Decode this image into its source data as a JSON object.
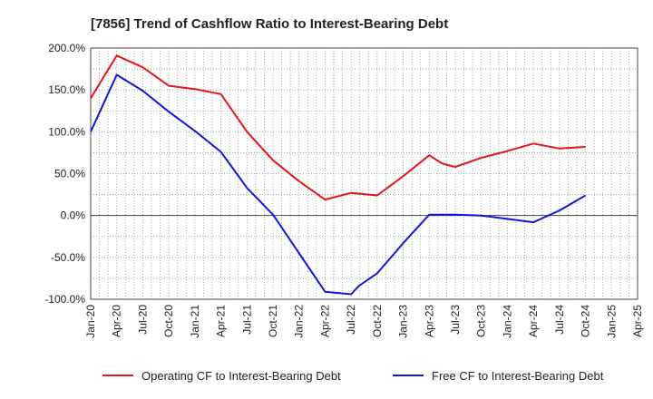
{
  "chart_data": {
    "type": "line",
    "title": "[7856]  Trend of Cashflow Ratio to Interest-Bearing Debt",
    "xlabel": "",
    "ylabel": "",
    "x_ticks": [
      "Jan-20",
      "Apr-20",
      "Jul-20",
      "Oct-20",
      "Jan-21",
      "Apr-21",
      "Jul-21",
      "Oct-21",
      "Jan-22",
      "Apr-22",
      "Jul-22",
      "Oct-22",
      "Jan-23",
      "Apr-23",
      "Jul-23",
      "Oct-23",
      "Jan-24",
      "Apr-24",
      "Jul-24",
      "Oct-24",
      "Jan-25",
      "Apr-25"
    ],
    "y_ticks": [
      "200.0%",
      "150.0%",
      "100.0%",
      "50.0%",
      "0.0%",
      "-50.0%",
      "-100.0%"
    ],
    "ylim": [
      -100,
      200
    ],
    "grid": true,
    "legend_position": "bottom",
    "series": [
      {
        "name": "Operating CF to Interest-Bearing Debt",
        "color": "#e8141b",
        "values": [
          [
            0,
            140
          ],
          [
            1,
            191
          ],
          [
            2,
            177
          ],
          [
            3,
            155
          ],
          [
            4,
            151
          ],
          [
            5,
            145
          ],
          [
            6,
            100
          ],
          [
            7,
            66
          ],
          [
            8,
            41
          ],
          [
            9,
            19
          ],
          [
            10,
            27
          ],
          [
            11,
            24
          ],
          [
            12,
            47
          ],
          [
            13,
            72
          ],
          [
            13.5,
            62
          ],
          [
            14,
            58
          ],
          [
            15,
            69
          ],
          [
            16,
            77
          ],
          [
            17,
            86
          ],
          [
            18,
            80
          ],
          [
            19,
            82
          ]
        ]
      },
      {
        "name": "Free CF to Interest-Bearing Debt",
        "color": "#1414e0",
        "values": [
          [
            0,
            100
          ],
          [
            1,
            168
          ],
          [
            2,
            149
          ],
          [
            3,
            124
          ],
          [
            4,
            101
          ],
          [
            5,
            76
          ],
          [
            6,
            33
          ],
          [
            7,
            1
          ],
          [
            8,
            -45
          ],
          [
            9,
            -91
          ],
          [
            10,
            -94
          ],
          [
            10.3,
            -84
          ],
          [
            11,
            -69
          ],
          [
            12,
            -33
          ],
          [
            13,
            1
          ],
          [
            14,
            1
          ],
          [
            15,
            0
          ],
          [
            16,
            -4
          ],
          [
            17,
            -8
          ],
          [
            18,
            6
          ],
          [
            19,
            24
          ]
        ]
      }
    ]
  }
}
